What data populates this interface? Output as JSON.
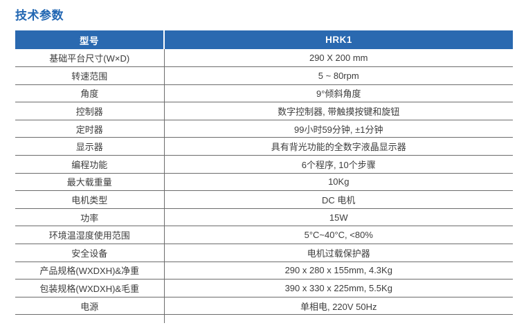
{
  "title": "技术参数",
  "colors": {
    "header_bg": "#2a69b0",
    "header_text": "#ffffff",
    "title": "#2166b2",
    "border": "#6b6b6b",
    "text": "#3c3c3c",
    "background": "#ffffff"
  },
  "table": {
    "header": {
      "model_label": "型号",
      "model_value": "HRK1"
    },
    "rows": [
      {
        "label": "基础平台尺寸(W×D)",
        "value": "290 X 200 mm"
      },
      {
        "label": "转速范围",
        "value": "5 ~ 80rpm"
      },
      {
        "label": "角度",
        "value": "9°倾斜角度"
      },
      {
        "label": "控制器",
        "value": "数字控制器, 带触摸按键和旋钮"
      },
      {
        "label": "定时器",
        "value": "99小时59分钟, ±1分钟"
      },
      {
        "label": "显示器",
        "value": "具有背光功能的全数字液晶显示器"
      },
      {
        "label": "编程功能",
        "value": "6个程序, 10个步骤"
      },
      {
        "label": "最大载重量",
        "value": "10Kg"
      },
      {
        "label": "电机类型",
        "value": "DC 电机"
      },
      {
        "label": "功率",
        "value": "15W"
      },
      {
        "label": "环境温湿度使用范围",
        "value": "5°C~40°C, <80%"
      },
      {
        "label": "安全设备",
        "value": "电机过载保护器"
      },
      {
        "label": "产品规格(WXDXH)&净重",
        "value": "290 x 280 x 155mm, 4.3Kg"
      },
      {
        "label": "包装规格(WXDXH)&毛重",
        "value": "390 x 330 x 225mm, 5.5Kg"
      },
      {
        "label": "电源",
        "value": "单相电, 220V 50Hz"
      }
    ]
  }
}
